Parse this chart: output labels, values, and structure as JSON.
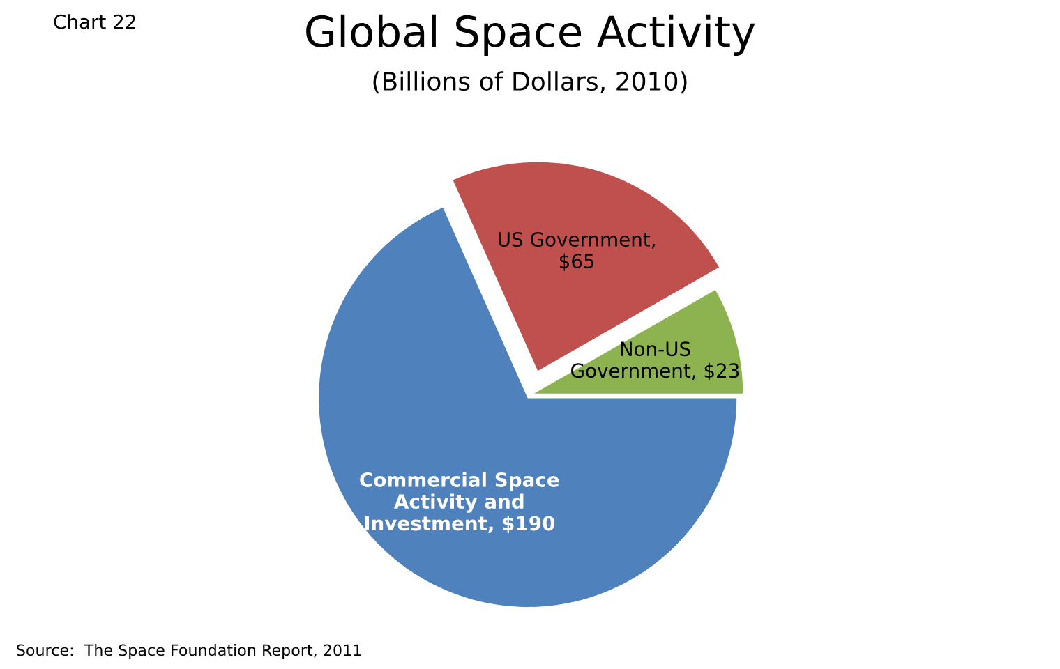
{
  "chart_data": {
    "type": "pie",
    "title": "Global Space Activity",
    "subtitle": "(Billions of Dollars, 2010)",
    "categories": [
      "Non-US\nGovernment, $23",
      "US Government,\n$65",
      "Commercial Space\nActivity and\nInvestment, $190"
    ],
    "values": [
      23,
      65,
      190
    ],
    "colors": [
      "#8db350",
      "#c0504d",
      "#4f81bd"
    ],
    "annotations": [
      "Chart 22",
      "Source:  The Space Foundation Report, 2011"
    ],
    "legend": false
  }
}
